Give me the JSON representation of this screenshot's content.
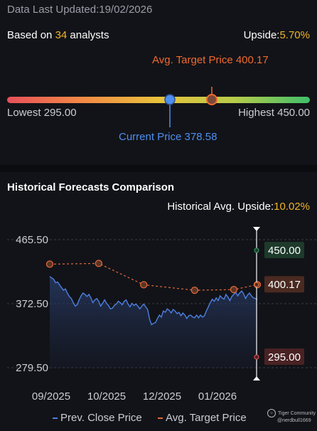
{
  "header": {
    "last_updated": "Data Last Updated:19/02/2026",
    "based_on_prefix": "Based on ",
    "analyst_count": "34",
    "based_on_suffix": " analysts",
    "upside_label": "Upside:",
    "upside_value": "5.70%"
  },
  "price_range": {
    "avg_target_label": "Avg. Target Price 400.17",
    "lowest_label": "Lowest 295.00",
    "highest_label": "Highest 450.00",
    "current_label": "Current Price 378.58",
    "low": 295.0,
    "high": 450.0,
    "current": 378.58,
    "avg_target": 400.17
  },
  "historical": {
    "title": "Historical Forecasts Comparison",
    "upside_label": "Historical Avg. Upside:",
    "upside_value": "10.02%"
  },
  "chart_data": {
    "type": "line",
    "y_ticks": [
      "465.50",
      "372.50",
      "279.50"
    ],
    "x_ticks": [
      "09/2025",
      "10/2025",
      "12/2025",
      "01/2026"
    ],
    "ylim": [
      279.5,
      465.5
    ],
    "grid": true,
    "legend_position": "bottom",
    "series": [
      {
        "name": "Prev. Close Price",
        "color": "#4d7fe0",
        "values": [
          412,
          410,
          408,
          403,
          404,
          400,
          396,
          392,
          394,
          388,
          383,
          380,
          374,
          369,
          371,
          378,
          384,
          388,
          386,
          383,
          386,
          381,
          374,
          378,
          380,
          376,
          369,
          373,
          378,
          373,
          370,
          365,
          366,
          370,
          372,
          376,
          374,
          371,
          376,
          378,
          372,
          368,
          373,
          370,
          372,
          369,
          365,
          369,
          372,
          368,
          364,
          350,
          342,
          344,
          345,
          351,
          356,
          353,
          362,
          360,
          365,
          363,
          359,
          364,
          362,
          358,
          360,
          355,
          359,
          356,
          351,
          355,
          356,
          353,
          352,
          356,
          352,
          356,
          353,
          355,
          362,
          368,
          374,
          379,
          376,
          381,
          377,
          384,
          381,
          379,
          386,
          382,
          377,
          383,
          386,
          389,
          384,
          388,
          391,
          387,
          380,
          385,
          388,
          384,
          381,
          380,
          378.58
        ]
      },
      {
        "name": "Avg. Target Price",
        "color": "#e0683a",
        "markers": [
          {
            "x_index": 0,
            "value": 430
          },
          {
            "x_index": 25,
            "value": 431
          },
          {
            "x_index": 48,
            "value": 400
          },
          {
            "x_index": 74,
            "value": 392
          },
          {
            "x_index": 94,
            "value": 393
          },
          {
            "x_index": 106,
            "value": 400.17
          }
        ]
      }
    ],
    "end_labels": [
      {
        "text": "450.00",
        "value": 450.0,
        "color": "#2e8b57",
        "bg": "#1d3a2b"
      },
      {
        "text": "400.17",
        "value": 400.17,
        "color": "#e0683a",
        "bg": "#4a2a20"
      },
      {
        "text": "295.00",
        "value": 295.0,
        "color": "#c94a4a",
        "bg": "#4a2224"
      }
    ]
  },
  "legend": {
    "close_label": "Prev. Close Price",
    "target_label": "Avg. Target Price"
  },
  "watermark": {
    "line1": "Tiger Community",
    "line2": "@nerdbull1669"
  }
}
